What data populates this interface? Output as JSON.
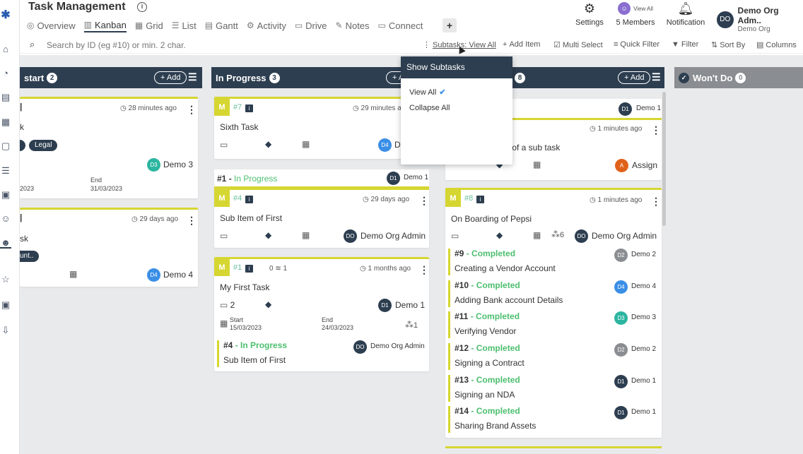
{
  "app": {
    "title": "Task Management"
  },
  "views": [
    {
      "label": "Overview",
      "icon": "overview-icon"
    },
    {
      "label": "Kanban",
      "icon": "kanban-icon"
    },
    {
      "label": "Grid",
      "icon": "grid-icon"
    },
    {
      "label": "List",
      "icon": "list-icon"
    },
    {
      "label": "Gantt",
      "icon": "gantt-icon"
    },
    {
      "label": "Activity",
      "icon": "activity-icon"
    },
    {
      "label": "Drive",
      "icon": "drive-icon"
    },
    {
      "label": "Notes",
      "icon": "notes-icon"
    },
    {
      "label": "Connect",
      "icon": "connect-icon"
    }
  ],
  "header": {
    "settings": "Settings",
    "members": "5 Members",
    "members_view_all": "View All",
    "notification": "Notification",
    "user_initials": "DO",
    "user_name": "Demo Org Adm..",
    "user_org": "Demo Org"
  },
  "toolbar": {
    "search_placeholder": "Search by ID (eg #10) or min. 2 char.",
    "subtasks": "Subtasks: View All",
    "add_item": "Add Item",
    "multi_select": "Multi Select",
    "quick_filter": "Quick Filter",
    "filter": "Filter",
    "sort_by": "Sort By",
    "columns": "Columns"
  },
  "dropdown": {
    "title": "Show Subtasks",
    "view_all": "View All",
    "collapse_all": "Collapse All"
  },
  "columns": {
    "c1": {
      "title": "start",
      "count": "2",
      "add": "+ Add"
    },
    "c2": {
      "title": "In Progress",
      "count": "3",
      "add": "+ A"
    },
    "c3": {
      "count": "8",
      "add": "+ Add"
    },
    "c4": {
      "title": "Won't Do",
      "count": "0"
    }
  },
  "cards": {
    "a1": {
      "time": "28 minutes ago",
      "title": "k",
      "tag": "Legal",
      "assignee_initials": "D3",
      "assignee": "Demo 3",
      "start": "2023",
      "end_label": "End",
      "end": "31/03/2023"
    },
    "a2": {
      "time": "29 days ago",
      "title": "sk",
      "tag": "unt..",
      "assignee_initials": "D4",
      "assignee": "Demo 4"
    },
    "b1": {
      "m": "M",
      "id": "#7",
      "time": "29 minutes a",
      "title": "Sixth Task",
      "assignee_initials": "D4",
      "assignee": "D"
    },
    "b_group": {
      "id": "#1",
      "status": "In Progress",
      "owner_initials": "D1",
      "owner": "Demo 1"
    },
    "b2": {
      "m": "M",
      "id": "#4",
      "time": "29 days ago",
      "title": "Sub Item of First",
      "assignee_initials": "DO",
      "assignee": "Demo Org Admin"
    },
    "b3": {
      "m": "M",
      "id": "#1",
      "sub_zero": "0",
      "sub_one": "1",
      "time": "1 months ago",
      "title": "My First Task",
      "comments": "2",
      "assignee_initials": "D1",
      "assignee": "Demo 1",
      "start_label": "Start",
      "start": "15/03/2023",
      "end_label": "End",
      "end": "24/03/2023",
      "children": "1",
      "sub": {
        "id": "#4",
        "status": "In Progress",
        "title": "Sub Item of First",
        "assignee_initials": "DO",
        "assignee": "Demo Org Admin"
      }
    },
    "c_group": {
      "owner_initials": "D1",
      "owner": "Demo 1"
    },
    "c1": {
      "time": "1 minutes ago",
      "title": "k of a sub task",
      "assignee_initials": "A",
      "assignee": "Assign"
    },
    "c2": {
      "m": "M",
      "id": "#8",
      "time": "1 minutes ago",
      "title": "On Boarding of Pepsi",
      "children": "6",
      "assignee_initials": "DO",
      "assignee": "Demo Org Admin",
      "subs": [
        {
          "id": "#9",
          "status": "Completed",
          "title": "Creating a Vendor Account",
          "initials": "D2",
          "who": "Demo 2",
          "color": "#8a8d91"
        },
        {
          "id": "#10",
          "status": "Completed",
          "title": "Adding Bank account Details",
          "initials": "D4",
          "who": "Demo 4",
          "color": "#3a8ee6"
        },
        {
          "id": "#11",
          "status": "Completed",
          "title": "Verifying Vendor",
          "initials": "D3",
          "who": "Demo 3",
          "color": "#2cb5a0"
        },
        {
          "id": "#12",
          "status": "Completed",
          "title": "Signing a Contract",
          "initials": "D2",
          "who": "Demo 2",
          "color": "#8a8d91"
        },
        {
          "id": "#13",
          "status": "Completed",
          "title": "Signing an NDA",
          "initials": "D1",
          "who": "Demo 1",
          "color": "#2d3e50"
        },
        {
          "id": "#14",
          "status": "Completed",
          "title": "Sharing Brand Assets",
          "initials": "D1",
          "who": "Demo 1",
          "color": "#2d3e50"
        }
      ]
    }
  },
  "separator": " - ",
  "colors": {
    "navy": "#2d3e50",
    "lime": "#d6d632",
    "green": "#4cbf6e"
  }
}
